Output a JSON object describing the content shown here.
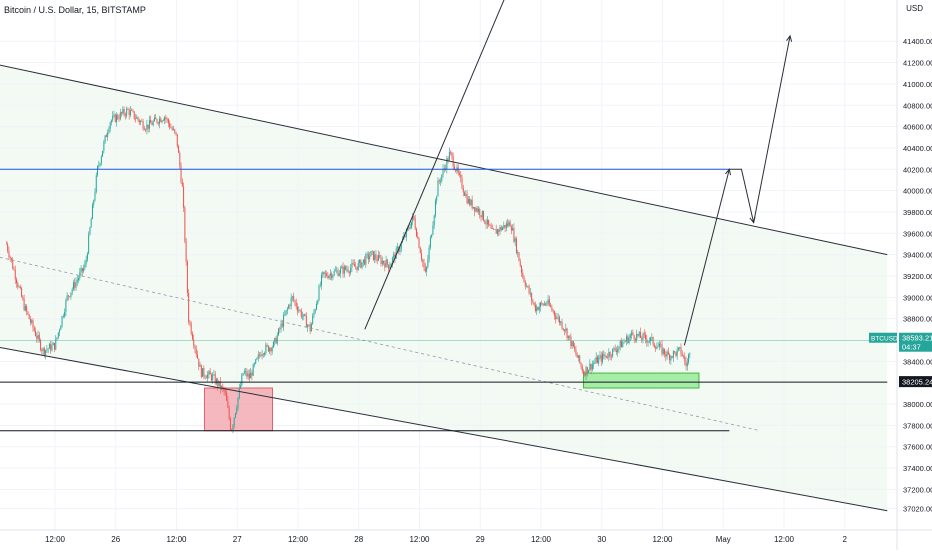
{
  "header": {
    "symbol_title": "Bitcoin / U.S. Dollar, 15, BITSTAMP",
    "currency": "USD"
  },
  "colors": {
    "up": "#26a69a",
    "down": "#ef5350",
    "channel_fill": "#e8f5e9",
    "resistance_line": "#1e53e5",
    "price_line": "#26a69a",
    "support_zone": "#8ee88e",
    "demand_zone": "#f2a0a8"
  },
  "chart_data": {
    "type": "candlestick",
    "instrument": "BTCUSD",
    "timeframe": "15",
    "exchange": "BITSTAMP",
    "y_ticks": [
      37020,
      37200,
      37400,
      37600,
      37800,
      38000,
      38400,
      38800,
      39000,
      39200,
      39400,
      39600,
      39800,
      40000,
      40200,
      40400,
      40600,
      40800,
      41000,
      41200,
      41400
    ],
    "ylim": [
      36900,
      41800
    ],
    "x_ticks": [
      {
        "t": 0.0,
        "label": "12:00"
      },
      {
        "t": 0.5,
        "label": "26"
      },
      {
        "t": 1.0,
        "label": "12:00"
      },
      {
        "t": 1.5,
        "label": "27"
      },
      {
        "t": 2.0,
        "label": "12:00"
      },
      {
        "t": 2.5,
        "label": "28"
      },
      {
        "t": 3.0,
        "label": "12:00"
      },
      {
        "t": 3.5,
        "label": "29"
      },
      {
        "t": 4.0,
        "label": "12:00"
      },
      {
        "t": 4.5,
        "label": "30"
      },
      {
        "t": 5.0,
        "label": "12:00"
      },
      {
        "t": 5.5,
        "label": "May"
      },
      {
        "t": 6.0,
        "label": "12:00"
      },
      {
        "t": 6.5,
        "label": "2"
      }
    ],
    "price_path": [
      [
        -0.4,
        39500
      ],
      [
        -0.25,
        38900
      ],
      [
        -0.1,
        38500
      ],
      [
        0.0,
        38550
      ],
      [
        0.1,
        39000
      ],
      [
        0.25,
        39300
      ],
      [
        0.35,
        40200
      ],
      [
        0.45,
        40650
      ],
      [
        0.6,
        40750
      ],
      [
        0.75,
        40600
      ],
      [
        0.9,
        40700
      ],
      [
        1.0,
        40500
      ],
      [
        1.05,
        40000
      ],
      [
        1.1,
        38800
      ],
      [
        1.2,
        38300
      ],
      [
        1.3,
        38250
      ],
      [
        1.4,
        38100
      ],
      [
        1.45,
        37750
      ],
      [
        1.55,
        38300
      ],
      [
        1.6,
        38250
      ],
      [
        1.7,
        38500
      ],
      [
        1.8,
        38550
      ],
      [
        1.95,
        39000
      ],
      [
        2.1,
        38700
      ],
      [
        2.2,
        39200
      ],
      [
        2.35,
        39250
      ],
      [
        2.5,
        39300
      ],
      [
        2.6,
        39400
      ],
      [
        2.75,
        39300
      ],
      [
        2.85,
        39500
      ],
      [
        2.95,
        39750
      ],
      [
        3.05,
        39200
      ],
      [
        3.15,
        40050
      ],
      [
        3.25,
        40350
      ],
      [
        3.4,
        39900
      ],
      [
        3.5,
        39800
      ],
      [
        3.6,
        39600
      ],
      [
        3.75,
        39700
      ],
      [
        3.85,
        39200
      ],
      [
        3.95,
        38900
      ],
      [
        4.05,
        38950
      ],
      [
        4.2,
        38700
      ],
      [
        4.35,
        38300
      ],
      [
        4.45,
        38400
      ],
      [
        4.6,
        38500
      ],
      [
        4.75,
        38650
      ],
      [
        4.9,
        38600
      ],
      [
        5.05,
        38450
      ],
      [
        5.15,
        38500
      ],
      [
        5.2,
        38350
      ],
      [
        5.23,
        38550
      ]
    ],
    "channel": {
      "upper": [
        [
          -0.55,
          41200
        ],
        [
          6.85,
          39400
        ]
      ],
      "lower": [
        [
          -0.55,
          38550
        ],
        [
          6.85,
          37000
        ]
      ],
      "midline": [
        [
          -0.55,
          39400
        ],
        [
          5.8,
          37750
        ]
      ]
    },
    "horizontal_levels": [
      {
        "name": "resistance",
        "price": 40200,
        "x0": -0.55,
        "x1": 5.55
      },
      {
        "name": "support",
        "price": 38205.24,
        "x0": -0.5,
        "x1": 6.85
      },
      {
        "name": "lower-support",
        "price": 37750,
        "x0": -0.55,
        "x1": 5.55
      }
    ],
    "zones": [
      {
        "name": "demand-zone",
        "x0": 1.23,
        "x1": 1.79,
        "y0": 37750,
        "y1": 38150
      },
      {
        "name": "support-zone",
        "x0": 4.35,
        "x1": 5.3,
        "y0": 38150,
        "y1": 38290
      }
    ],
    "projection_path": [
      [
        5.18,
        38550
      ],
      [
        5.55,
        40200
      ],
      [
        5.65,
        40200
      ],
      [
        5.75,
        39700
      ],
      [
        6.05,
        41450
      ]
    ],
    "breakout_line": [
      [
        2.55,
        38700
      ],
      [
        3.7,
        41800
      ]
    ],
    "current_price": {
      "symbol": "BTCUSD",
      "value": "38593.21",
      "countdown": "04:37",
      "price": 38593.21
    },
    "support_price_label": "38205.24"
  }
}
